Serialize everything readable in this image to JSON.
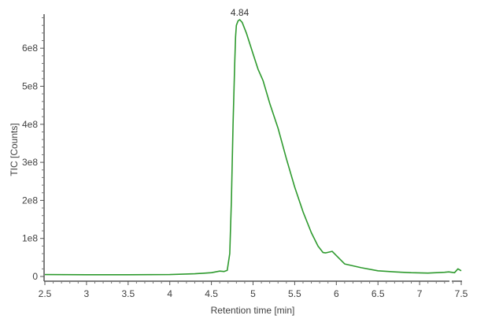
{
  "chart_data": {
    "type": "line",
    "title": "",
    "xlabel": "Retention time [min]",
    "ylabel": "TIC [Counts]",
    "xlim": [
      2.5,
      7.5
    ],
    "ylim": [
      0,
      680000000
    ],
    "x_ticks": [
      "2.5",
      "3",
      "3.5",
      "4",
      "4.5",
      "5",
      "5.5",
      "6",
      "6.5",
      "7",
      "7.5"
    ],
    "y_ticks": [
      "0",
      "1e8",
      "2e8",
      "3e8",
      "4e8",
      "5e8",
      "6e8"
    ],
    "grid": false,
    "legend": null,
    "line_color": "#2e9a2e",
    "annotations": [
      {
        "x": 4.84,
        "y": 675000000,
        "text": "4.84"
      }
    ],
    "series": [
      {
        "name": "TIC",
        "x": [
          2.5,
          3.0,
          3.5,
          4.0,
          4.3,
          4.5,
          4.6,
          4.65,
          4.69,
          4.72,
          4.74,
          4.76,
          4.78,
          4.79,
          4.8,
          4.82,
          4.84,
          4.87,
          4.92,
          5.0,
          5.06,
          5.12,
          5.2,
          5.3,
          5.4,
          5.5,
          5.6,
          5.7,
          5.78,
          5.84,
          5.87,
          5.95,
          6.0,
          6.1,
          6.3,
          6.5,
          6.7,
          6.9,
          7.1,
          7.3,
          7.35,
          7.42,
          7.46,
          7.5
        ],
        "y": [
          5000000,
          4500000,
          4500000,
          5000000,
          7000000,
          10000000,
          14000000,
          13000000,
          16000000,
          60000000,
          200000000,
          400000000,
          560000000,
          630000000,
          660000000,
          672000000,
          675000000,
          668000000,
          640000000,
          585000000,
          545000000,
          515000000,
          455000000,
          390000000,
          310000000,
          235000000,
          170000000,
          115000000,
          80000000,
          63000000,
          62000000,
          66000000,
          55000000,
          33000000,
          23000000,
          15000000,
          12000000,
          10000000,
          9000000,
          11000000,
          12000000,
          10000000,
          20000000,
          15000000
        ]
      }
    ]
  }
}
